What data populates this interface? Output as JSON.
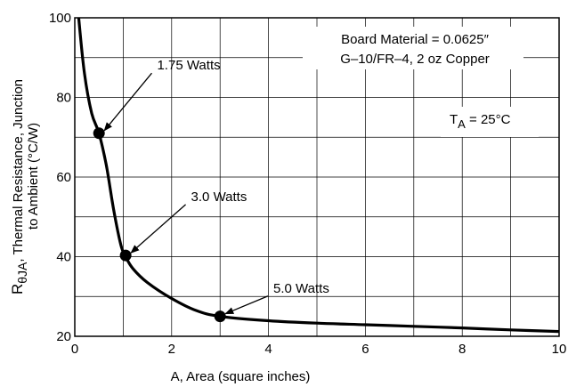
{
  "chart_data": {
    "type": "line",
    "xlabel": "A, Area (square inches)",
    "ylabel_main": "R",
    "ylabel_sub": "θJA",
    "ylabel_rest": ", Thermal Resistance, Junction",
    "ylabel_line2": "to Ambient (°C/W)",
    "xlim": [
      0,
      10
    ],
    "ylim": [
      20,
      100
    ],
    "x_ticks": [
      0,
      2,
      4,
      6,
      8,
      10
    ],
    "y_ticks": [
      20,
      40,
      60,
      80,
      100
    ],
    "grid": true,
    "series": [
      {
        "x": [
          0.08,
          0.2,
          0.35,
          0.5,
          0.65,
          0.8,
          0.95,
          1.05,
          1.2,
          1.5,
          2.0,
          2.5,
          3.0,
          4.0,
          5.0,
          6.0,
          7.0,
          8.0,
          9.0,
          10.0
        ],
        "y": [
          100,
          86,
          76,
          71,
          63,
          52,
          43,
          40,
          37,
          33.5,
          29.5,
          26.5,
          25,
          23.9,
          23.3,
          22.9,
          22.5,
          22.1,
          21.6,
          21.2
        ]
      }
    ],
    "markers": [
      {
        "x": 0.5,
        "y": 71,
        "label": "1.75 Watts",
        "label_x": 1.7,
        "label_y": 87
      },
      {
        "x": 1.05,
        "y": 40.3,
        "label": "3.0 Watts",
        "label_x": 2.4,
        "label_y": 54
      },
      {
        "x": 3.0,
        "y": 25,
        "label": "5.0 Watts",
        "label_x": 4.1,
        "label_y": 31
      }
    ],
    "annotations": {
      "board_line1": "Board Material = 0.0625″",
      "board_line2": "G–10/FR–4, 2 oz Copper",
      "temp_main": "T",
      "temp_sub": "A",
      "temp_rest": " = 25°C"
    }
  }
}
